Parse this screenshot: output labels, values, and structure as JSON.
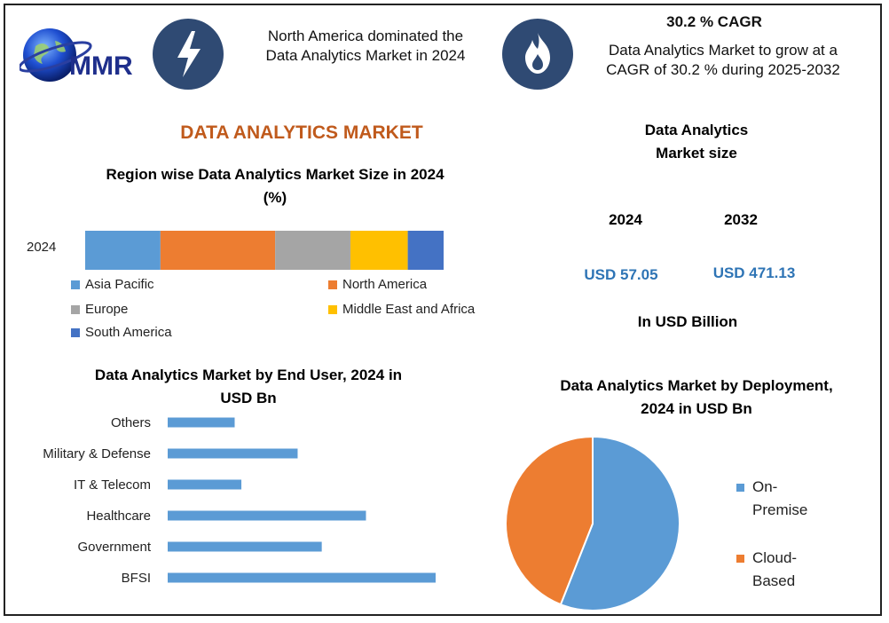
{
  "header": {
    "logo_text": "MMR",
    "item1": {
      "icon": "lightning-icon",
      "text_line1": "North America dominated the",
      "text_line2": "Data Analytics Market in 2024"
    },
    "item2": {
      "icon": "flame-icon",
      "title": "30.2 % CAGR",
      "text_line1": "Data Analytics Market to grow at a",
      "text_line2": "CAGR of 30.2 % during 2025-2032"
    }
  },
  "main_title": "DATA ANALYTICS MARKET",
  "market_size": {
    "title_line1": "Data Analytics",
    "title_line2": "Market size",
    "year1": "2024",
    "year2": "2032",
    "value1": "USD 57.05",
    "value2": "USD 471.13",
    "unit": "In USD Billion"
  },
  "chart_data": [
    {
      "type": "bar",
      "stacked": true,
      "orientation": "horizontal",
      "title_line1": "Region wise Data Analytics Market Size in 2024",
      "title_line2": "(%)",
      "categories": [
        "2024"
      ],
      "series": [
        {
          "name": "Asia Pacific",
          "values": [
            21
          ],
          "color": "#5b9bd5"
        },
        {
          "name": "North America",
          "values": [
            32
          ],
          "color": "#ed7d31"
        },
        {
          "name": "Europe",
          "values": [
            21
          ],
          "color": "#a5a5a5"
        },
        {
          "name": "Middle East and Africa",
          "values": [
            16
          ],
          "color": "#ffc000"
        },
        {
          "name": "South America",
          "values": [
            10
          ],
          "color": "#4472c4"
        }
      ],
      "legend": "bottom"
    },
    {
      "type": "bar",
      "orientation": "horizontal",
      "title_line1": "Data Analytics Market by End User, 2024 in",
      "title_line2": "USD Bn",
      "categories": [
        "Others",
        "Military & Defense",
        "IT & Telecom",
        "Healthcare",
        "Government",
        "BFSI"
      ],
      "values": [
        5,
        9.7,
        5.5,
        14.8,
        11.5,
        20
      ],
      "xlim": [
        0,
        20
      ],
      "color": "#5b9bd5"
    },
    {
      "type": "pie",
      "title_line1": "Data Analytics Market by Deployment,",
      "title_line2": "2024 in USD Bn",
      "series": [
        {
          "name_line1": "On-",
          "name_line2": "Premise",
          "value": 56,
          "color": "#5b9bd5"
        },
        {
          "name_line1": "Cloud-",
          "name_line2": "Based",
          "value": 44,
          "color": "#ed7d31"
        }
      ],
      "legend": "right"
    }
  ]
}
